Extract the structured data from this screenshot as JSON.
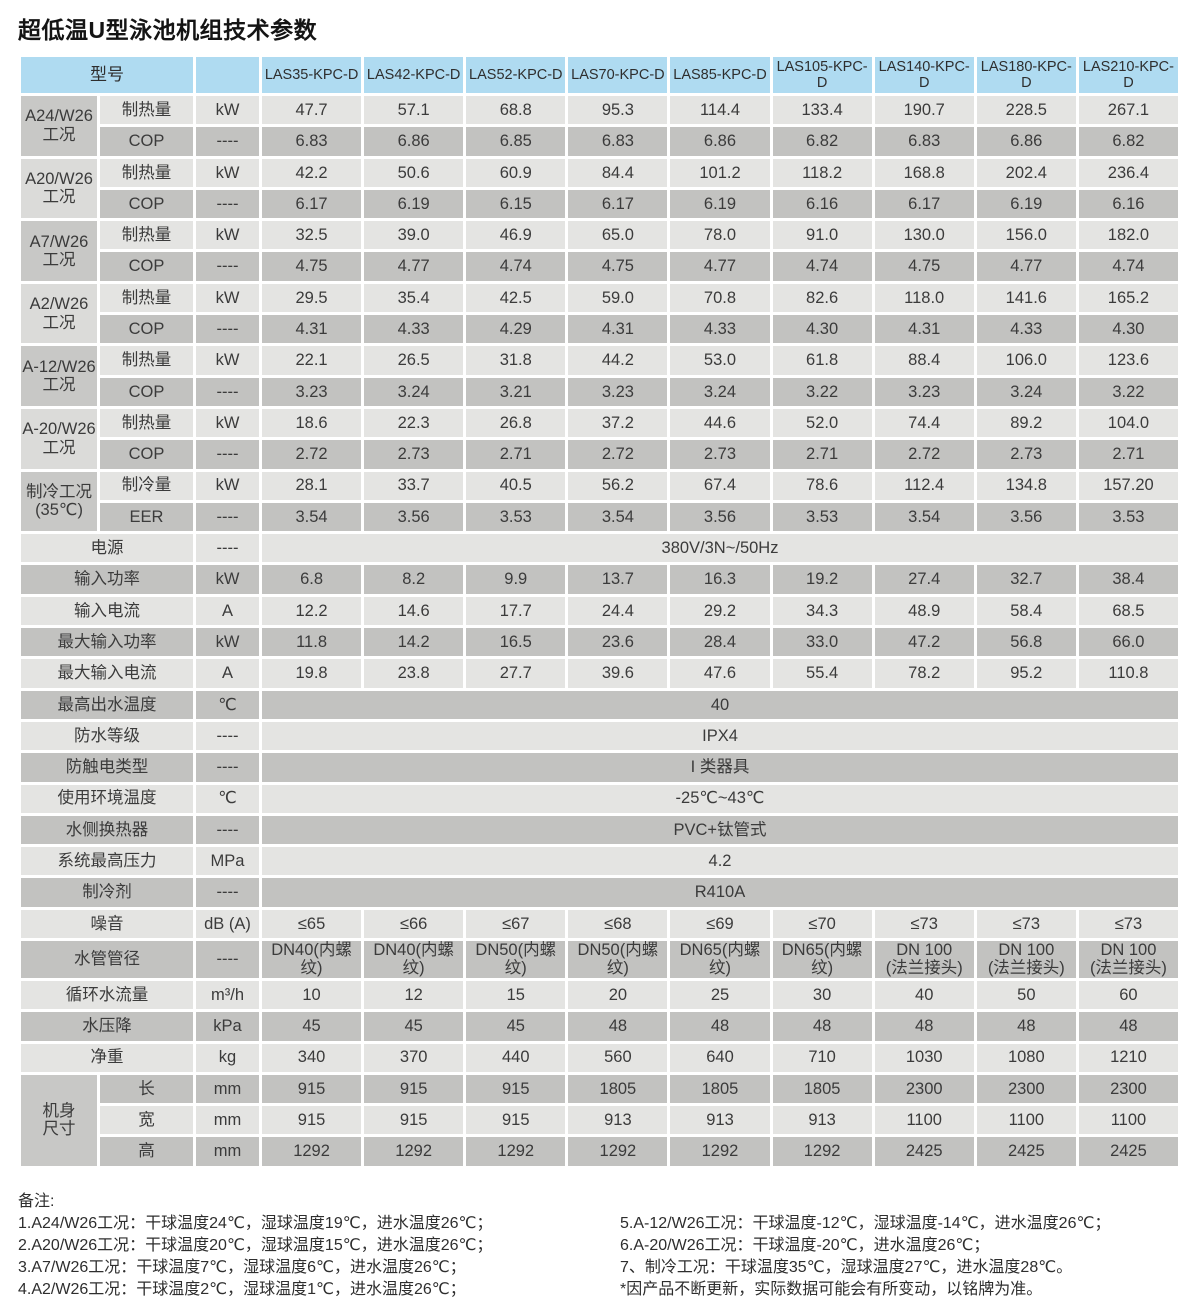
{
  "title": "超低温U型泳池机组技术参数",
  "colors": {
    "header_bg": "#afdbf1",
    "row_light": "#e4e4e2",
    "row_dark": "#c2c2c0",
    "condition_dark": "#c8c8c6",
    "condition_light": "#dbdbd9",
    "text": "#3b3b3b"
  },
  "table": {
    "model_header_label": "型号",
    "models": [
      "LAS35-KPC-D",
      "LAS42-KPC-D",
      "LAS52-KPC-D",
      "LAS70-KPC-D",
      "LAS85-KPC-D",
      "LAS105-KPC-D",
      "LAS140-KPC-D",
      "LAS180-KPC-D",
      "LAS210-KPC-D"
    ],
    "condition_groups": [
      {
        "condition": "A24/W26\n工况",
        "shade": "dark",
        "rows": [
          {
            "label": "制热量",
            "unit": "kW",
            "values": [
              "47.7",
              "57.1",
              "68.8",
              "95.3",
              "114.4",
              "133.4",
              "190.7",
              "228.5",
              "267.1"
            ]
          },
          {
            "label": "COP",
            "unit": "----",
            "values": [
              "6.83",
              "6.86",
              "6.85",
              "6.83",
              "6.86",
              "6.82",
              "6.83",
              "6.86",
              "6.82"
            ]
          }
        ]
      },
      {
        "condition": "A20/W26\n工况",
        "shade": "light",
        "rows": [
          {
            "label": "制热量",
            "unit": "kW",
            "values": [
              "42.2",
              "50.6",
              "60.9",
              "84.4",
              "101.2",
              "118.2",
              "168.8",
              "202.4",
              "236.4"
            ]
          },
          {
            "label": "COP",
            "unit": "----",
            "values": [
              "6.17",
              "6.19",
              "6.15",
              "6.17",
              "6.19",
              "6.16",
              "6.17",
              "6.19",
              "6.16"
            ]
          }
        ]
      },
      {
        "condition": "A7/W26\n工况",
        "shade": "dark",
        "rows": [
          {
            "label": "制热量",
            "unit": "kW",
            "values": [
              "32.5",
              "39.0",
              "46.9",
              "65.0",
              "78.0",
              "91.0",
              "130.0",
              "156.0",
              "182.0"
            ]
          },
          {
            "label": "COP",
            "unit": "----",
            "values": [
              "4.75",
              "4.77",
              "4.74",
              "4.75",
              "4.77",
              "4.74",
              "4.75",
              "4.77",
              "4.74"
            ]
          }
        ]
      },
      {
        "condition": "A2/W26\n工况",
        "shade": "light",
        "rows": [
          {
            "label": "制热量",
            "unit": "kW",
            "values": [
              "29.5",
              "35.4",
              "42.5",
              "59.0",
              "70.8",
              "82.6",
              "118.0",
              "141.6",
              "165.2"
            ]
          },
          {
            "label": "COP",
            "unit": "----",
            "values": [
              "4.31",
              "4.33",
              "4.29",
              "4.31",
              "4.33",
              "4.30",
              "4.31",
              "4.33",
              "4.30"
            ]
          }
        ]
      },
      {
        "condition": "A-12/W26\n工况",
        "shade": "dark",
        "rows": [
          {
            "label": "制热量",
            "unit": "kW",
            "values": [
              "22.1",
              "26.5",
              "31.8",
              "44.2",
              "53.0",
              "61.8",
              "88.4",
              "106.0",
              "123.6"
            ]
          },
          {
            "label": "COP",
            "unit": "----",
            "values": [
              "3.23",
              "3.24",
              "3.21",
              "3.23",
              "3.24",
              "3.22",
              "3.23",
              "3.24",
              "3.22"
            ]
          }
        ]
      },
      {
        "condition": "A-20/W26\n工况",
        "shade": "light",
        "rows": [
          {
            "label": "制热量",
            "unit": "kW",
            "values": [
              "18.6",
              "22.3",
              "26.8",
              "37.2",
              "44.6",
              "52.0",
              "74.4",
              "89.2",
              "104.0"
            ]
          },
          {
            "label": "COP",
            "unit": "----",
            "values": [
              "2.72",
              "2.73",
              "2.71",
              "2.72",
              "2.73",
              "2.71",
              "2.72",
              "2.73",
              "2.71"
            ]
          }
        ]
      },
      {
        "condition": "制冷工况\n(35℃)",
        "shade": "dark",
        "rows": [
          {
            "label": "制冷量",
            "unit": "kW",
            "values": [
              "28.1",
              "33.7",
              "40.5",
              "56.2",
              "67.4",
              "78.6",
              "112.4",
              "134.8",
              "157.20"
            ]
          },
          {
            "label": "EER",
            "unit": "----",
            "values": [
              "3.54",
              "3.56",
              "3.53",
              "3.54",
              "3.56",
              "3.53",
              "3.54",
              "3.56",
              "3.53"
            ]
          }
        ]
      }
    ],
    "spec_rows": [
      {
        "label": "电源",
        "unit": "----",
        "span_value": "380V/3N~/50Hz"
      },
      {
        "label": "输入功率",
        "unit": "kW",
        "values": [
          "6.8",
          "8.2",
          "9.9",
          "13.7",
          "16.3",
          "19.2",
          "27.4",
          "32.7",
          "38.4"
        ]
      },
      {
        "label": "输入电流",
        "unit": "A",
        "values": [
          "12.2",
          "14.6",
          "17.7",
          "24.4",
          "29.2",
          "34.3",
          "48.9",
          "58.4",
          "68.5"
        ]
      },
      {
        "label": "最大输入功率",
        "unit": "kW",
        "values": [
          "11.8",
          "14.2",
          "16.5",
          "23.6",
          "28.4",
          "33.0",
          "47.2",
          "56.8",
          "66.0"
        ]
      },
      {
        "label": "最大输入电流",
        "unit": "A",
        "values": [
          "19.8",
          "23.8",
          "27.7",
          "39.6",
          "47.6",
          "55.4",
          "78.2",
          "95.2",
          "110.8"
        ]
      },
      {
        "label": "最高出水温度",
        "unit": "℃",
        "span_value": "40"
      },
      {
        "label": "防水等级",
        "unit": "----",
        "span_value": "IPX4"
      },
      {
        "label": "防触电类型",
        "unit": "----",
        "span_value": "I 类器具"
      },
      {
        "label": "使用环境温度",
        "unit": "℃",
        "span_value": "-25℃~43℃"
      },
      {
        "label": "水侧换热器",
        "unit": "----",
        "span_value": "PVC+钛管式"
      },
      {
        "label": "系统最高压力",
        "unit": "MPa",
        "span_value": "4.2"
      },
      {
        "label": "制冷剂",
        "unit": "----",
        "span_value": "R410A"
      },
      {
        "label": "噪音",
        "unit": "dB (A)",
        "values": [
          "≤65",
          "≤66",
          "≤67",
          "≤68",
          "≤69",
          "≤70",
          "≤73",
          "≤73",
          "≤73"
        ]
      },
      {
        "label": "水管管径",
        "unit": "----",
        "small": true,
        "values": [
          "DN40(内螺纹)",
          "DN40(内螺纹)",
          "DN50(内螺纹)",
          "DN50(内螺纹)",
          "DN65(内螺纹)",
          "DN65(内螺纹)",
          "DN 100\n(法兰接头)",
          "DN 100\n(法兰接头)",
          "DN 100\n(法兰接头)"
        ]
      },
      {
        "label": "循环水流量",
        "unit": "m³/h",
        "values": [
          "10",
          "12",
          "15",
          "20",
          "25",
          "30",
          "40",
          "50",
          "60"
        ]
      },
      {
        "label": "水压降",
        "unit": "kPa",
        "values": [
          "45",
          "45",
          "45",
          "48",
          "48",
          "48",
          "48",
          "48",
          "48"
        ]
      },
      {
        "label": "净重",
        "unit": "kg",
        "values": [
          "340",
          "370",
          "440",
          "560",
          "640",
          "710",
          "1030",
          "1080",
          "1210"
        ]
      }
    ],
    "dimension_group": {
      "condition": "机身\n尺寸",
      "shade": "dark",
      "rows": [
        {
          "label": "长",
          "unit": "mm",
          "values": [
            "915",
            "915",
            "915",
            "1805",
            "1805",
            "1805",
            "2300",
            "2300",
            "2300"
          ]
        },
        {
          "label": "宽",
          "unit": "mm",
          "values": [
            "915",
            "915",
            "915",
            "913",
            "913",
            "913",
            "1100",
            "1100",
            "1100"
          ]
        },
        {
          "label": "高",
          "unit": "mm",
          "values": [
            "1292",
            "1292",
            "1292",
            "1292",
            "1292",
            "1292",
            "2425",
            "2425",
            "2425"
          ]
        }
      ]
    }
  },
  "notes": {
    "heading": "备注:",
    "left": [
      "1.A24/W26工况：干球温度24℃，湿球温度19℃，进水温度26℃；",
      "2.A20/W26工况：干球温度20℃，湿球温度15℃，进水温度26℃；",
      "3.A7/W26工况：干球温度7℃，湿球温度6℃，进水温度26℃；",
      "4.A2/W26工况：干球温度2℃，湿球温度1℃，进水温度26℃；"
    ],
    "right": [
      "5.A-12/W26工况：干球温度-12℃，湿球温度-14℃，进水温度26℃；",
      "6.A-20/W26工况：干球温度-20℃，进水温度26℃；",
      "7、制冷工况：干球温度35℃，湿球温度27℃，进水温度28℃。",
      "*因产品不断更新，实际数据可能会有所变动，以铭牌为准。"
    ]
  }
}
